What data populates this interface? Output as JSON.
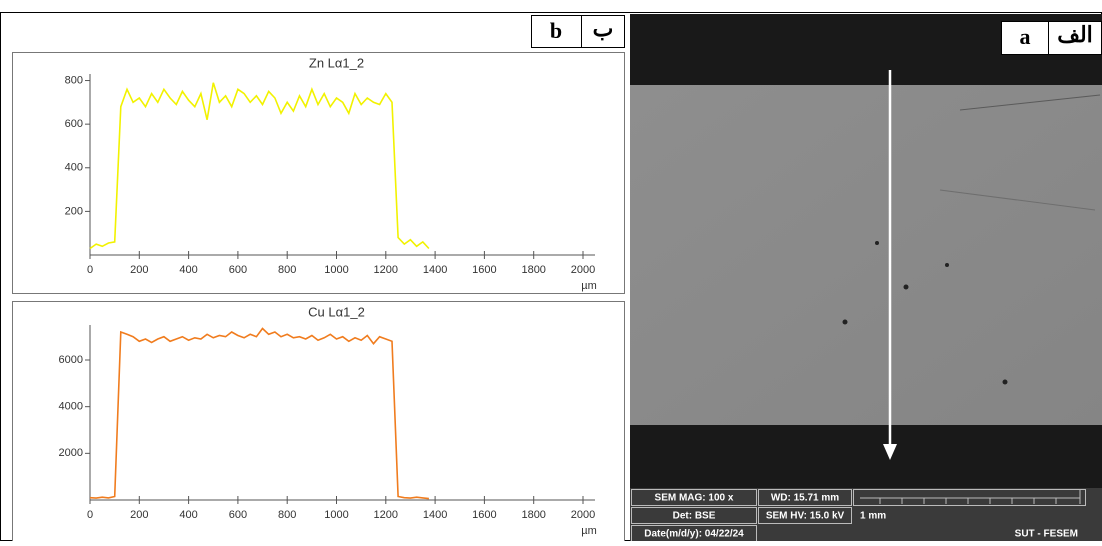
{
  "chart_data": [
    {
      "type": "line",
      "title": "Zn Lα1_2",
      "xlabel": "µm",
      "color": "#f2f200",
      "x": [
        0,
        25,
        50,
        75,
        100,
        125,
        150,
        175,
        200,
        225,
        250,
        275,
        300,
        325,
        350,
        375,
        400,
        425,
        450,
        475,
        500,
        525,
        550,
        575,
        600,
        625,
        650,
        675,
        700,
        725,
        750,
        775,
        800,
        825,
        850,
        875,
        900,
        925,
        950,
        975,
        1000,
        1025,
        1050,
        1075,
        1100,
        1125,
        1150,
        1175,
        1200,
        1225,
        1250,
        1275,
        1300,
        1325,
        1350,
        1375
      ],
      "values": [
        30,
        50,
        40,
        55,
        60,
        680,
        760,
        700,
        720,
        680,
        740,
        700,
        760,
        720,
        690,
        750,
        710,
        680,
        740,
        620,
        790,
        700,
        730,
        680,
        760,
        740,
        700,
        730,
        690,
        750,
        720,
        650,
        700,
        660,
        730,
        680,
        760,
        690,
        740,
        680,
        720,
        700,
        650,
        740,
        690,
        720,
        700,
        690,
        740,
        700,
        80,
        50,
        70,
        40,
        60,
        30
      ],
      "xlim": [
        0,
        2000
      ],
      "xticks": [
        0,
        200,
        400,
        600,
        800,
        1000,
        1200,
        1400,
        1600,
        1800,
        2000
      ],
      "ylim": [
        0,
        830
      ],
      "yticks": [
        200,
        400,
        600,
        800
      ]
    },
    {
      "type": "line",
      "title": "Cu Lα1_2",
      "xlabel": "µm",
      "color": "#f07c1e",
      "x": [
        0,
        25,
        50,
        75,
        100,
        125,
        150,
        175,
        200,
        225,
        250,
        275,
        300,
        325,
        350,
        375,
        400,
        425,
        450,
        475,
        500,
        525,
        550,
        575,
        600,
        625,
        650,
        675,
        700,
        725,
        750,
        775,
        800,
        825,
        850,
        875,
        900,
        925,
        950,
        975,
        1000,
        1025,
        1050,
        1075,
        1100,
        1125,
        1150,
        1175,
        1200,
        1225,
        1250,
        1275,
        1300,
        1325,
        1350,
        1375
      ],
      "values": [
        100,
        80,
        120,
        90,
        150,
        7200,
        7100,
        7000,
        6800,
        6900,
        6750,
        6900,
        7000,
        6800,
        6900,
        7000,
        6850,
        6950,
        6900,
        7100,
        6950,
        7050,
        7000,
        7200,
        7050,
        6950,
        7100,
        7000,
        7350,
        7100,
        7200,
        7000,
        7100,
        6950,
        7000,
        6900,
        7050,
        6850,
        6950,
        7100,
        6900,
        7000,
        6800,
        6950,
        6850,
        7050,
        6700,
        7000,
        6900,
        6800,
        150,
        100,
        80,
        120,
        90,
        60
      ],
      "xlim": [
        0,
        2000
      ],
      "xticks": [
        0,
        200,
        400,
        600,
        800,
        1000,
        1200,
        1400,
        1600,
        1800,
        2000
      ],
      "ylim": [
        0,
        7500
      ],
      "yticks": [
        2000,
        4000,
        6000
      ]
    }
  ],
  "panels": {
    "b_latin": "b",
    "b_persian": "ب",
    "a_latin": "a",
    "a_persian": "الف"
  },
  "sem": {
    "mag": "SEM MAG: 100 x",
    "wd": "WD: 15.71 mm",
    "det": "Det: BSE",
    "hv": "SEM HV: 15.0 kV",
    "scale": "1 mm",
    "date": "Date(m/d/y): 04/22/24",
    "lab": "SUT - FESEM"
  }
}
